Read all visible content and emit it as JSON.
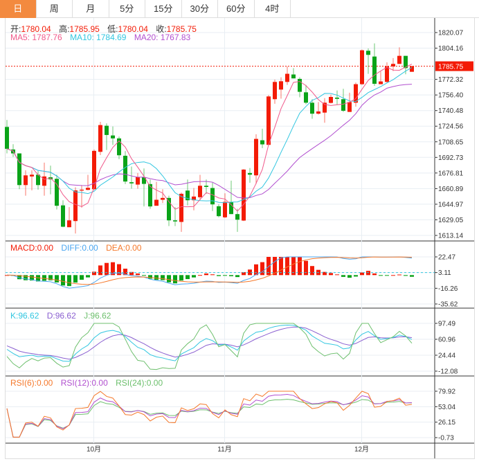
{
  "tabs": [
    "日",
    "周",
    "月",
    "5分",
    "15分",
    "30分",
    "60分",
    "4时"
  ],
  "active_tab": 0,
  "ohlc": {
    "open_label": "开:",
    "open": "1780.04",
    "high_label": "高:",
    "high": "1785.95",
    "low_label": "低:",
    "low": "1780.04",
    "close_label": "收:",
    "close": "1785.75"
  },
  "ma_legend": {
    "ma5": "MA5: 1787.76",
    "ma10": "MA10: 1784.69",
    "ma20": "MA20: 1767.83"
  },
  "macd_legend": {
    "macd": "MACD:0.00",
    "diff": "DIFF:0.00",
    "dea": "DEA:0.00"
  },
  "kdj_legend": {
    "k": "K:96.62",
    "d": "D:96.62",
    "j": "J:96.62"
  },
  "rsi_legend": {
    "rsi6": "RSI(6):0.00",
    "rsi12": "RSI(12):0.00",
    "rsi24": "RSI(24):0.00"
  },
  "colors": {
    "up": "#f31b06",
    "down": "#0aa318",
    "ma5": "#f0588a",
    "ma10": "#31c6e0",
    "ma20": "#b14fcf",
    "diff": "#4aa6f0",
    "dea": "#f5782a",
    "accent": "#f38a3f"
  },
  "chart_data": {
    "type": "candlestick",
    "price_axis": {
      "ticks": [
        "1820.07",
        "1804.16",
        "1785.75",
        "1772.32",
        "1756.40",
        "1740.48",
        "1724.56",
        "1708.65",
        "1692.73",
        "1676.81",
        "1660.89",
        "1644.97",
        "1629.05",
        "1613.14"
      ],
      "range": [
        1613.14,
        1820.07
      ],
      "current": "1785.75"
    },
    "macd_axis": {
      "ticks": [
        "22.47",
        "3.11",
        "-16.26",
        "-35.62"
      ],
      "range": [
        -35.62,
        22.47
      ]
    },
    "kdj_axis": {
      "ticks": [
        "97.49",
        "60.96",
        "24.44",
        "-12.08"
      ],
      "range": [
        -12.08,
        97.49
      ]
    },
    "rsi_axis": {
      "ticks": [
        "79.92",
        "53.04",
        "26.15",
        "-0.73"
      ],
      "range": [
        -0.73,
        79.92
      ]
    },
    "x_labels": [
      {
        "label": "10月",
        "index": 14
      },
      {
        "label": "11月",
        "index": 35
      },
      {
        "label": "12月",
        "index": 57
      }
    ],
    "candles": [
      [
        1723.8,
        1730.9,
        1696.8,
        1701.5
      ],
      [
        1700.8,
        1706.2,
        1693.2,
        1696.8
      ],
      [
        1696.8,
        1696.8,
        1660.3,
        1664.5
      ],
      [
        1664.5,
        1679.6,
        1653.7,
        1674.4
      ],
      [
        1673.3,
        1679.6,
        1659.1,
        1675.1
      ],
      [
        1675.1,
        1678.7,
        1659.8,
        1664.5
      ],
      [
        1663.8,
        1687.4,
        1653.7,
        1673.3
      ],
      [
        1672.5,
        1684.3,
        1655.1,
        1670.4
      ],
      [
        1670.9,
        1675.1,
        1639.6,
        1643.4
      ],
      [
        1643.8,
        1649.0,
        1621.5,
        1622.0
      ],
      [
        1621.5,
        1642.0,
        1621.5,
        1628.5
      ],
      [
        1627.8,
        1662.2,
        1615.1,
        1659.1
      ],
      [
        1658.9,
        1664.5,
        1641.5,
        1659.8
      ],
      [
        1659.6,
        1674.9,
        1659.1,
        1661.7
      ],
      [
        1660.3,
        1700.8,
        1659.6,
        1699.4
      ],
      [
        1698.4,
        1729.0,
        1695.1,
        1725.7
      ],
      [
        1725.0,
        1727.4,
        1700.3,
        1715.6
      ],
      [
        1715.1,
        1724.3,
        1705.5,
        1712.1
      ],
      [
        1712.1,
        1714.0,
        1690.9,
        1694.9
      ],
      [
        1694.4,
        1699.1,
        1665.5,
        1668.1
      ],
      [
        1667.4,
        1683.4,
        1660.8,
        1666.2
      ],
      [
        1665.0,
        1676.8,
        1660.8,
        1672.5
      ],
      [
        1672.5,
        1681.5,
        1642.7,
        1665.7
      ],
      [
        1665.5,
        1670.2,
        1640.3,
        1642.7
      ],
      [
        1643.4,
        1667.8,
        1643.4,
        1649.5
      ],
      [
        1649.5,
        1660.3,
        1646.2,
        1651.4
      ],
      [
        1651.4,
        1653.7,
        1622.7,
        1628.5
      ],
      [
        1628.5,
        1642.0,
        1622.7,
        1627.4
      ],
      [
        1626.9,
        1656.8,
        1616.8,
        1655.6
      ],
      [
        1658.9,
        1670.2,
        1643.8,
        1649.0
      ],
      [
        1649.0,
        1661.5,
        1638.7,
        1652.8
      ],
      [
        1652.1,
        1674.9,
        1649.0,
        1663.8
      ],
      [
        1663.8,
        1670.2,
        1655.6,
        1662.6
      ],
      [
        1661.5,
        1666.9,
        1638.0,
        1644.8
      ],
      [
        1642.9,
        1645.0,
        1631.6,
        1632.8
      ],
      [
        1631.6,
        1656.1,
        1630.9,
        1647.4
      ],
      [
        1647.4,
        1669.0,
        1634.9,
        1634.9
      ],
      [
        1634.9,
        1640.3,
        1616.8,
        1629.2
      ],
      [
        1628.3,
        1680.8,
        1627.8,
        1680.3
      ],
      [
        1676.8,
        1681.9,
        1666.9,
        1675.1
      ],
      [
        1674.4,
        1716.3,
        1665.5,
        1711.6
      ],
      [
        1710.2,
        1722.0,
        1702.2,
        1706.0
      ],
      [
        1705.5,
        1756.3,
        1705.5,
        1754.9
      ],
      [
        1752.1,
        1772.1,
        1747.4,
        1769.7
      ],
      [
        1761.9,
        1774.4,
        1752.6,
        1770.4
      ],
      [
        1769.7,
        1785.5,
        1766.7,
        1778.0
      ],
      [
        1777.3,
        1783.8,
        1773.3,
        1773.3
      ],
      [
        1772.8,
        1774.4,
        1754.0,
        1759.6
      ],
      [
        1759.1,
        1766.7,
        1746.9,
        1748.5
      ],
      [
        1748.5,
        1752.1,
        1732.1,
        1737.3
      ],
      [
        1737.3,
        1749.2,
        1736.5,
        1739.6
      ],
      [
        1738.4,
        1753.2,
        1728.1,
        1748.5
      ],
      [
        1748.3,
        1756.8,
        1747.8,
        1754.4
      ],
      [
        1753.7,
        1761.0,
        1746.2,
        1752.5
      ],
      [
        1752.1,
        1762.7,
        1739.1,
        1740.3
      ],
      [
        1739.1,
        1758.7,
        1739.1,
        1749.2
      ],
      [
        1748.5,
        1769.0,
        1744.5,
        1767.4
      ],
      [
        1767.4,
        1802.7,
        1766.7,
        1802.0
      ],
      [
        1801.5,
        1803.8,
        1778.0,
        1797.3
      ],
      [
        1795.6,
        1809.0,
        1765.7,
        1767.8
      ],
      [
        1767.4,
        1780.3,
        1767.4,
        1770.2
      ],
      [
        1769.7,
        1789.7,
        1769.0,
        1785.5
      ],
      [
        1785.5,
        1794.0,
        1780.8,
        1788.1
      ],
      [
        1788.1,
        1805.0,
        1787.8,
        1796.3
      ],
      [
        1796.3,
        1796.3,
        1777.5,
        1783.8
      ],
      [
        1780.04,
        1785.95,
        1780.04,
        1785.75
      ]
    ]
  }
}
